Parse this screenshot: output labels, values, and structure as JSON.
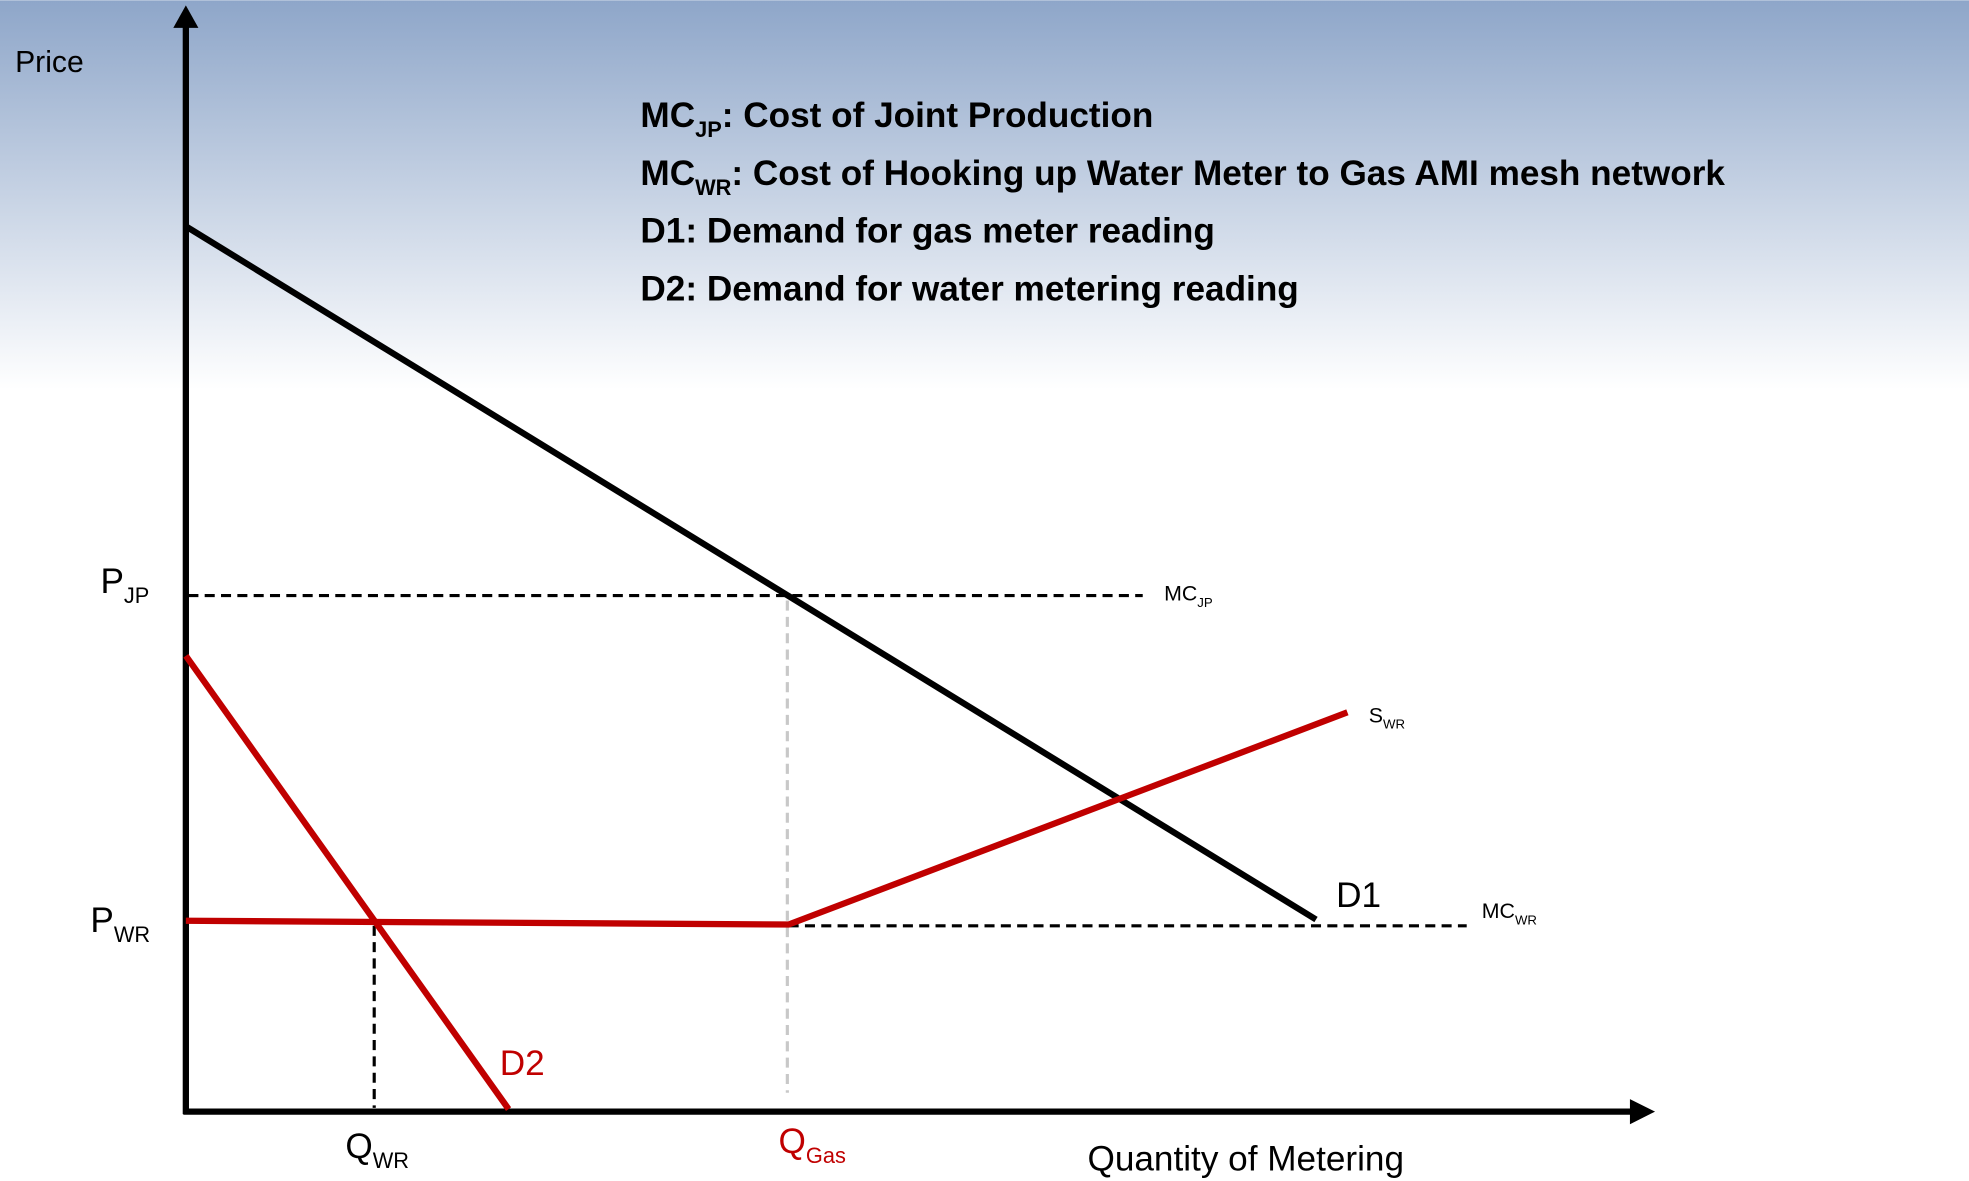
{
  "axes": {
    "y_label": "Price",
    "x_label": "Quantity of Metering"
  },
  "legend": [
    {
      "term": "MC",
      "sub": "JP",
      "text": ": Cost of Joint Production"
    },
    {
      "term": "MC",
      "sub": "WR",
      "text": ": Cost of Hooking up Water Meter to Gas AMI mesh network"
    },
    {
      "term": "D1",
      "text": ": Demand for gas meter reading"
    },
    {
      "term": "D2",
      "text": ": Demand for water metering reading"
    }
  ],
  "price_labels": [
    {
      "main": "P",
      "sub": "JP"
    },
    {
      "main": "P",
      "sub": "WR"
    }
  ],
  "quantity_labels": [
    {
      "main": "Q",
      "sub": "WR"
    },
    {
      "main": "Q",
      "sub": "Gas"
    }
  ],
  "curve_labels": {
    "d1": "D1",
    "d2": "D2",
    "s_wr": {
      "main": "S",
      "sub": "WR"
    },
    "mc_jp": {
      "main": "MC",
      "sub": "JP"
    },
    "mc_wr": {
      "main": "MC",
      "sub": "WR"
    }
  }
}
